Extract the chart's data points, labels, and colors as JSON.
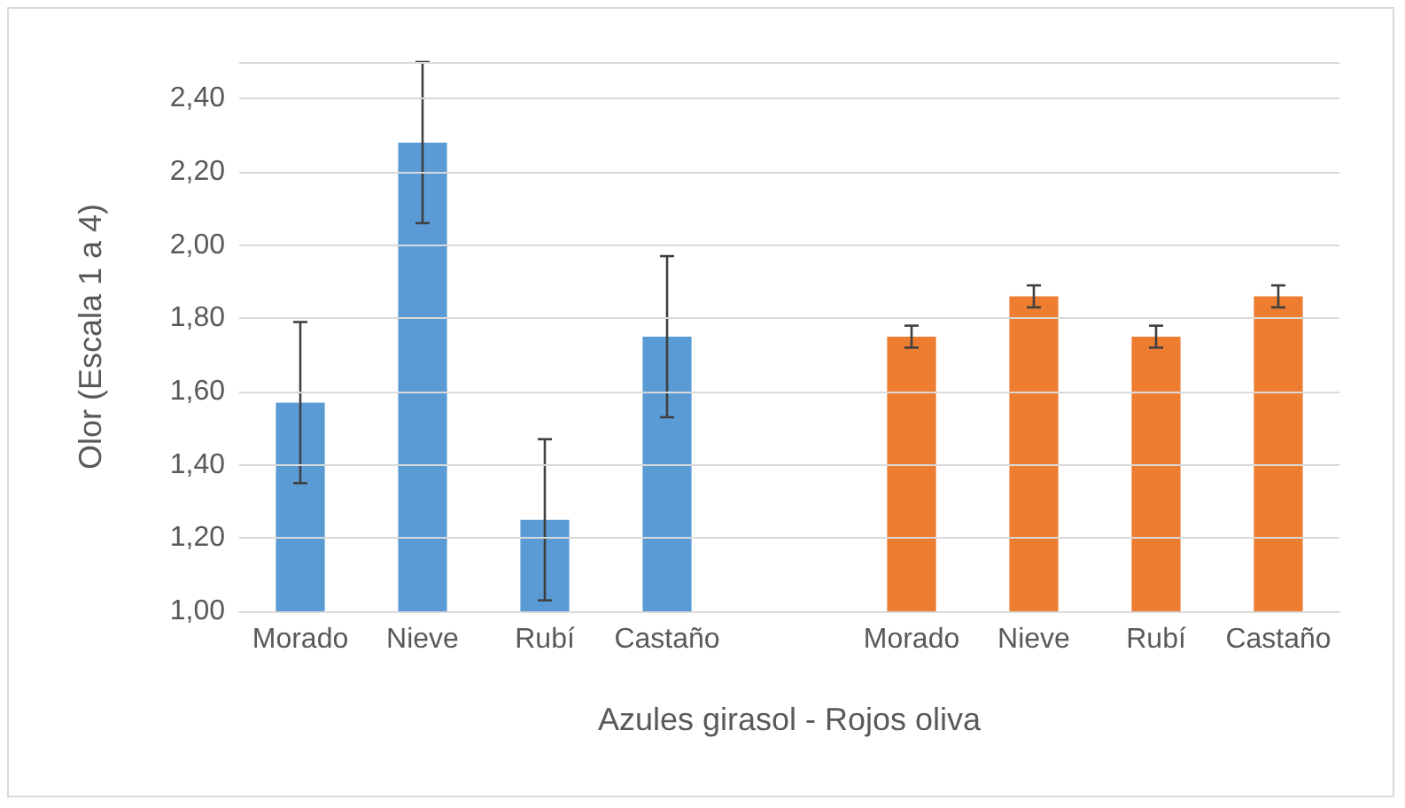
{
  "chart_data": {
    "type": "bar",
    "xlabel": "Azules girasol - Rojos oliva",
    "ylabel": "Olor (Escala 1 a 4)",
    "categories": [
      "Morado",
      "Nieve",
      "Rubí",
      "Castaño",
      null,
      "Morado",
      "Nieve",
      "Rubí",
      "Castaño"
    ],
    "series": [
      {
        "color": "#5b9bd5",
        "values": [
          1.57,
          2.28,
          1.25,
          1.75,
          null,
          null,
          null,
          null,
          null
        ],
        "errors": [
          0.22,
          0.22,
          0.22,
          0.22,
          null,
          null,
          null,
          null,
          null
        ]
      },
      {
        "color": "#ed7d31",
        "values": [
          null,
          null,
          null,
          null,
          null,
          1.75,
          1.86,
          1.75,
          1.86
        ],
        "errors": [
          null,
          null,
          null,
          null,
          null,
          0.03,
          0.03,
          0.03,
          0.03
        ]
      }
    ],
    "ylim": [
      1,
      2.5
    ],
    "yticks": [
      {
        "value": 1,
        "label": "1,00"
      },
      {
        "value": 1.2,
        "label": "1,20"
      },
      {
        "value": 1.4,
        "label": "1,40"
      },
      {
        "value": 1.6,
        "label": "1,60"
      },
      {
        "value": 1.8,
        "label": "1,80"
      },
      {
        "value": 2,
        "label": "2,00"
      },
      {
        "value": 2.2,
        "label": "2,20"
      },
      {
        "value": 2.4,
        "label": "2,40"
      },
      {
        "value": 2.5,
        "label": null
      }
    ],
    "grid": "y"
  }
}
